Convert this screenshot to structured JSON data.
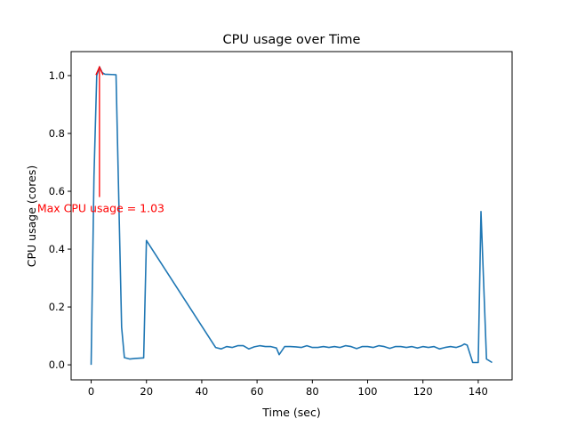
{
  "chart_data": {
    "type": "line",
    "title": "CPU usage over Time",
    "xlabel": "Time (sec)",
    "ylabel": "CPU usage (cores)",
    "xlim": [
      -7.25,
      152.25
    ],
    "ylim": [
      -0.052,
      1.083
    ],
    "xticks": [
      0,
      20,
      40,
      60,
      80,
      100,
      120,
      140
    ],
    "yticks": [
      0.0,
      0.2,
      0.4,
      0.6,
      0.8,
      1.0
    ],
    "ytick_labels": [
      "0.0",
      "0.2",
      "0.4",
      "0.6",
      "0.8",
      "1.0"
    ],
    "grid": false,
    "line_color": "#1f77b4",
    "series": [
      {
        "x": [
          0,
          1,
          2,
          3,
          4,
          5,
          9,
          11,
          12,
          14,
          16,
          19,
          20,
          45,
          47,
          49,
          51,
          53,
          55,
          57,
          59,
          61,
          63,
          65,
          67,
          68,
          70,
          72,
          74,
          76,
          78,
          80,
          82,
          84,
          86,
          88,
          90,
          92,
          94,
          96,
          98,
          100,
          102,
          104,
          106,
          108,
          110,
          112,
          114,
          116,
          118,
          120,
          122,
          124,
          126,
          128,
          130,
          132,
          134,
          135,
          136,
          138,
          140,
          141,
          143,
          145
        ],
        "y": [
          0.0,
          0.65,
          1.0,
          1.03,
          1.01,
          1.005,
          1.003,
          0.13,
          0.025,
          0.02,
          0.022,
          0.024,
          0.43,
          0.06,
          0.055,
          0.063,
          0.06,
          0.066,
          0.066,
          0.055,
          0.062,
          0.066,
          0.063,
          0.063,
          0.058,
          0.035,
          0.063,
          0.063,
          0.062,
          0.06,
          0.066,
          0.06,
          0.06,
          0.063,
          0.06,
          0.063,
          0.06,
          0.066,
          0.063,
          0.056,
          0.063,
          0.063,
          0.06,
          0.066,
          0.063,
          0.057,
          0.063,
          0.063,
          0.06,
          0.063,
          0.058,
          0.063,
          0.06,
          0.063,
          0.055,
          0.06,
          0.063,
          0.06,
          0.066,
          0.072,
          0.068,
          0.008,
          0.008,
          0.53,
          0.02,
          0.008
        ]
      }
    ],
    "annotation": {
      "text": "Max CPU usage = 1.03",
      "xy": [
        3,
        1.03
      ],
      "xytext": [
        3.5,
        0.54
      ],
      "color": "#ff0000"
    }
  }
}
